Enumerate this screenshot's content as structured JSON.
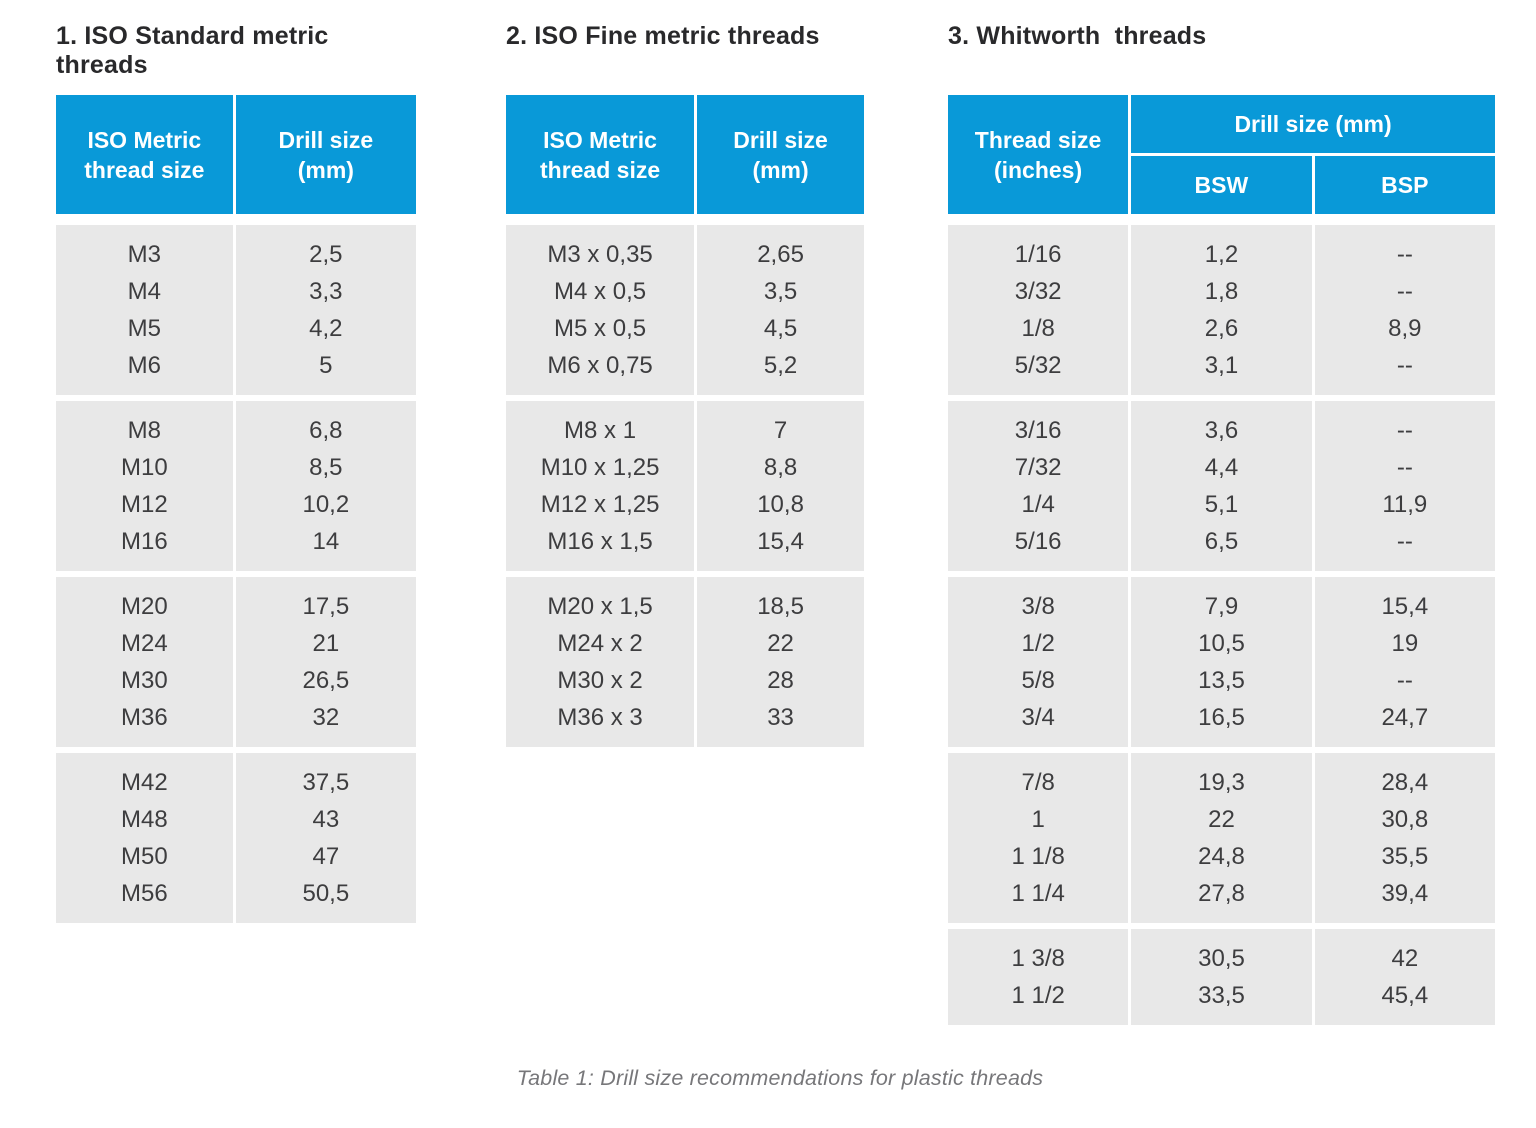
{
  "page": {
    "caption": "Table 1: Drill size recommendations for plastic threads"
  },
  "colors": {
    "header_blue": "#0999d8",
    "header_text": "#ffffff",
    "row_background": "#e8e8e8",
    "row_text": "#3d3d3f",
    "title_text": "#29292b",
    "caption_text": "#77777a"
  },
  "tables": [
    {
      "title": "1. ISO Standard metric threads",
      "columns": [
        "ISO Metric\nthread size",
        "Drill size\n(mm)"
      ],
      "groups": [
        [
          [
            "M3",
            "M4",
            "M5",
            "M6"
          ],
          [
            "2,5",
            "3,3",
            "4,2",
            "5"
          ]
        ],
        [
          [
            "M8",
            "M10",
            "M12",
            "M16"
          ],
          [
            "6,8",
            "8,5",
            "10,2",
            "14"
          ]
        ],
        [
          [
            "M20",
            "M24",
            "M30",
            "M36"
          ],
          [
            "17,5",
            "21",
            "26,5",
            "32"
          ]
        ],
        [
          [
            "M42",
            "M48",
            "M50",
            "M56"
          ],
          [
            "37,5",
            "43",
            "47",
            "50,5"
          ]
        ]
      ]
    },
    {
      "title": "2. ISO Fine metric threads",
      "columns": [
        "ISO Metric\nthread size",
        "Drill size\n(mm)"
      ],
      "groups": [
        [
          [
            "M3 x 0,35",
            "M4 x 0,5",
            "M5 x 0,5",
            "M6 x 0,75"
          ],
          [
            "2,65",
            "3,5",
            "4,5",
            "5,2"
          ]
        ],
        [
          [
            "M8 x 1",
            "M10 x 1,25",
            "M12 x 1,25",
            "M16 x 1,5"
          ],
          [
            "7",
            "8,8",
            "10,8",
            "15,4"
          ]
        ],
        [
          [
            "M20 x 1,5",
            "M24 x 2",
            "M30 x 2",
            "M36 x 3"
          ],
          [
            "18,5",
            "22",
            "28",
            "33"
          ]
        ]
      ]
    },
    {
      "title": "3. Whitworth  threads",
      "columns": [
        "Thread size\n(inches)"
      ],
      "span_header": "Drill size (mm)",
      "sub_columns": [
        "BSW",
        "BSP"
      ],
      "groups": [
        [
          [
            "1/16",
            "3/32",
            "1/8",
            "5/32"
          ],
          [
            "1,2",
            "1,8",
            "2,6",
            "3,1"
          ],
          [
            "--",
            "--",
            "8,9",
            "--"
          ]
        ],
        [
          [
            "3/16",
            "7/32",
            "1/4",
            "5/16"
          ],
          [
            "3,6",
            "4,4",
            "5,1",
            "6,5"
          ],
          [
            "--",
            "--",
            "11,9",
            "--"
          ]
        ],
        [
          [
            "3/8",
            "1/2",
            "5/8",
            "3/4"
          ],
          [
            "7,9",
            "10,5",
            "13,5",
            "16,5"
          ],
          [
            "15,4",
            "19",
            "--",
            "24,7"
          ]
        ],
        [
          [
            "7/8",
            "1",
            "1 1/8",
            "1 1/4"
          ],
          [
            "19,3",
            "22",
            "24,8",
            "27,8"
          ],
          [
            "28,4",
            "30,8",
            "35,5",
            "39,4"
          ]
        ],
        [
          [
            "1 3/8",
            "1 1/2"
          ],
          [
            "30,5",
            "33,5"
          ],
          [
            "42",
            "45,4"
          ]
        ]
      ]
    }
  ]
}
